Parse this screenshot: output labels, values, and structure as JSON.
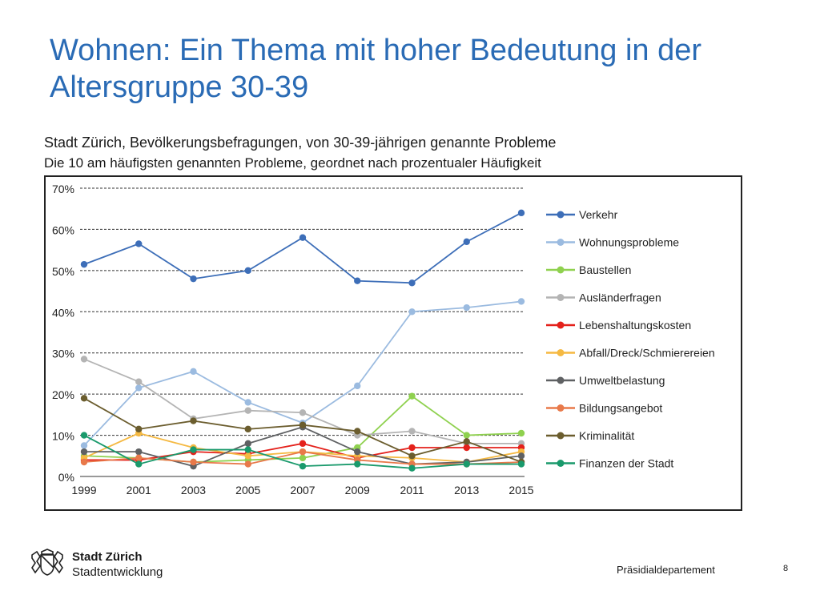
{
  "slide": {
    "title": "Wohnen: Ein Thema mit hoher Bedeutung in der Altersgruppe 30-39",
    "org_name": "Stadt Zürich",
    "org_sub": "Stadtentwicklung",
    "department": "Präsidialdepartement",
    "page_number": "8"
  },
  "chart_data": {
    "type": "line",
    "title": "Stadt Zürich, Bevölkerungsbefragungen, von 30-39-jährigen genannte Probleme",
    "subtitle": "Die 10 am häufigsten genannten Probleme, geordnet nach prozentualer Häufigkeit",
    "xlabel": "",
    "ylabel": "",
    "ylim": [
      0,
      70
    ],
    "yticks": [
      "0%",
      "10%",
      "20%",
      "30%",
      "40%",
      "50%",
      "60%",
      "70%"
    ],
    "grid": true,
    "legend_position": "right",
    "categories": [
      "1999",
      "2001",
      "2003",
      "2005",
      "2007",
      "2009",
      "2011",
      "2013",
      "2015"
    ],
    "series": [
      {
        "name": "Verkehr",
        "color": "#3d6eb8",
        "values": [
          51.5,
          56.5,
          48,
          50,
          58,
          47.5,
          47,
          57,
          64
        ]
      },
      {
        "name": "Wohnungsprobleme",
        "color": "#9bbbe0",
        "values": [
          7.5,
          21.5,
          25.5,
          18,
          13,
          22,
          40,
          41,
          42.5
        ]
      },
      {
        "name": "Baustellen",
        "color": "#8fd14f",
        "values": [
          5,
          4.5,
          3.5,
          4,
          4.5,
          7,
          19.5,
          10,
          10.5
        ]
      },
      {
        "name": "Ausländerfragen",
        "color": "#b4b4b4",
        "values": [
          28.5,
          23,
          14,
          16,
          15.5,
          10,
          11,
          8,
          8
        ]
      },
      {
        "name": "Lebenshaltungskosten",
        "color": "#e4211b",
        "values": [
          4,
          4,
          6,
          5.5,
          8,
          4.5,
          7,
          7,
          7
        ]
      },
      {
        "name": "Abfall/Dreck/Schmierereien",
        "color": "#f5b942",
        "values": [
          4.5,
          10.5,
          7,
          5,
          6,
          5,
          4.5,
          3.5,
          6
        ]
      },
      {
        "name": "Umweltbelastung",
        "color": "#5f6163",
        "values": [
          6,
          6,
          2.5,
          8,
          12,
          6,
          3,
          3.5,
          5
        ]
      },
      {
        "name": "Bildungsangebot",
        "color": "#e8794a",
        "values": [
          3.5,
          4.5,
          3.5,
          3,
          6,
          4,
          3,
          3,
          3.5
        ]
      },
      {
        "name": "Kriminalität",
        "color": "#6b5d2e",
        "values": [
          19,
          11.5,
          13.5,
          11.5,
          12.5,
          11,
          5,
          8.5,
          3.5
        ]
      },
      {
        "name": "Finanzen der Stadt",
        "color": "#1a9a6c",
        "values": [
          10,
          3,
          6.5,
          6.5,
          2.5,
          3,
          2,
          3,
          3
        ]
      }
    ]
  }
}
